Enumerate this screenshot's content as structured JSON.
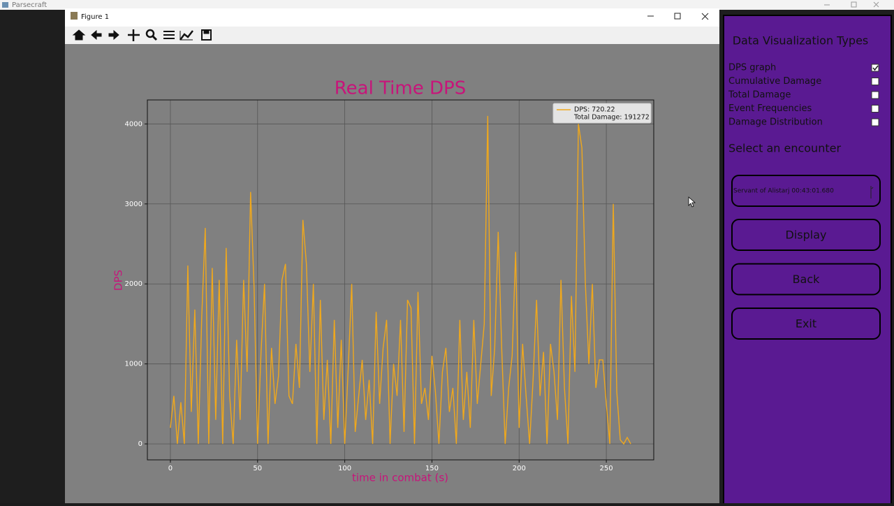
{
  "app_title": "Parsecraft",
  "figure_window": {
    "title": "Figure 1"
  },
  "chart_data": {
    "type": "line",
    "title": "Real Time DPS",
    "x_label": "time in combat (s)",
    "y_label": "DPS",
    "x": [
      0,
      2,
      4,
      6,
      8,
      10,
      12,
      14,
      16,
      18,
      20,
      22,
      24,
      26,
      28,
      30,
      32,
      34,
      36,
      38,
      40,
      42,
      44,
      46,
      48,
      50,
      52,
      54,
      56,
      58,
      60,
      62,
      64,
      66,
      68,
      70,
      72,
      74,
      76,
      78,
      80,
      82,
      84,
      86,
      88,
      90,
      92,
      94,
      96,
      98,
      100,
      102,
      104,
      106,
      108,
      110,
      112,
      114,
      116,
      118,
      120,
      122,
      124,
      126,
      128,
      130,
      132,
      134,
      136,
      138,
      140,
      142,
      144,
      146,
      148,
      150,
      152,
      154,
      156,
      158,
      160,
      162,
      164,
      166,
      168,
      170,
      172,
      174,
      176,
      178,
      180,
      182,
      184,
      186,
      188,
      190,
      192,
      194,
      196,
      198,
      200,
      202,
      204,
      206,
      208,
      210,
      212,
      214,
      216,
      218,
      220,
      222,
      224,
      226,
      228,
      230,
      232,
      234,
      236,
      238,
      240,
      242,
      244,
      246,
      248,
      250,
      252,
      254,
      256,
      258,
      260,
      262,
      264
    ],
    "series": [
      {
        "name": "DPS: 720.22",
        "color": "#f0a81c",
        "values": [
          200,
          600,
          0,
          520,
          0,
          2230,
          400,
          1680,
          0,
          1600,
          2700,
          0,
          2200,
          300,
          2050,
          0,
          2450,
          600,
          0,
          1300,
          300,
          2050,
          900,
          3150,
          1950,
          0,
          1150,
          2000,
          0,
          1200,
          500,
          850,
          2050,
          2250,
          600,
          500,
          1250,
          700,
          2800,
          2250,
          900,
          2000,
          0,
          1800,
          300,
          1050,
          0,
          1550,
          200,
          1300,
          0,
          950,
          2000,
          150,
          600,
          1050,
          300,
          800,
          0,
          1650,
          500,
          1200,
          1550,
          0,
          1000,
          600,
          1550,
          150,
          1800,
          1700,
          0,
          1900,
          500,
          700,
          300,
          1100,
          650,
          0,
          900,
          1200,
          400,
          700,
          0,
          1550,
          300,
          900,
          200,
          1550,
          500,
          1000,
          1500,
          4100,
          600,
          1200,
          2650,
          1200,
          0,
          700,
          1100,
          2400,
          200,
          1250,
          600,
          0,
          800,
          1800,
          600,
          1150,
          0,
          1250,
          900,
          300,
          2050,
          700,
          0,
          1850,
          900,
          4000,
          3700,
          2000,
          1000,
          2000,
          700,
          1050,
          1050,
          500,
          0,
          3000,
          650,
          50,
          0,
          80,
          0
        ]
      }
    ],
    "legend_note": "Total Damage: 191272",
    "legend": "upper right",
    "xlim": [
      -13.2,
      277.2
    ],
    "ylim": [
      -200,
      4300
    ],
    "xticks": [
      0,
      50,
      100,
      150,
      200,
      250
    ],
    "yticks": [
      0,
      1000,
      2000,
      3000,
      4000
    ],
    "grid": true
  },
  "sidebar": {
    "heading": "Data Visualization Types",
    "options": [
      {
        "label": "DPS graph",
        "checked": true
      },
      {
        "label": "Cumulative Damage",
        "checked": false
      },
      {
        "label": "Total Damage",
        "checked": false
      },
      {
        "label": "Event Frequencies",
        "checked": false
      },
      {
        "label": "Damage Distribution",
        "checked": false
      }
    ],
    "encounter_label": "Select an encounter",
    "encounter_value": "Servant of Alistarj 00:43:01.680",
    "buttons": [
      "Display",
      "Back",
      "Exit"
    ]
  }
}
